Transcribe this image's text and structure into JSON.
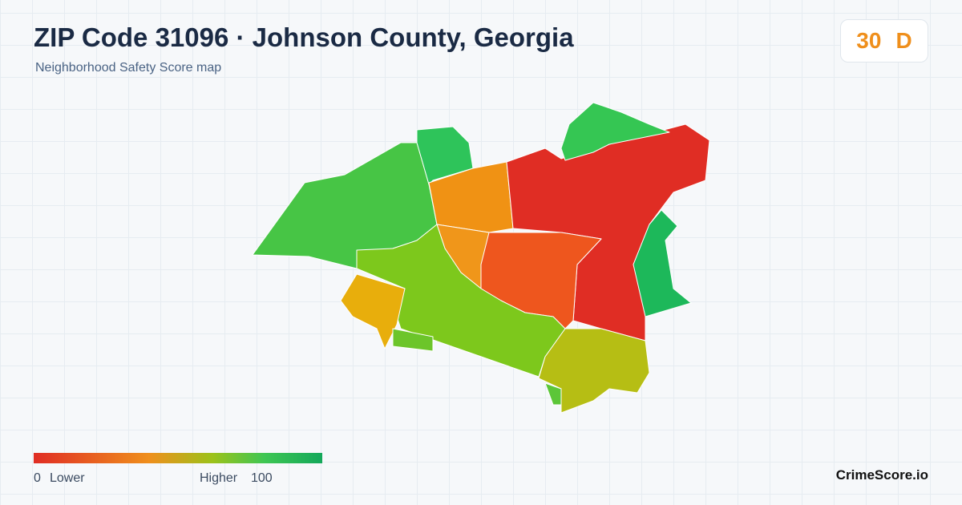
{
  "header": {
    "title": "ZIP Code 31096 · Johnson County, Georgia",
    "subtitle": "Neighborhood Safety Score map"
  },
  "badge": {
    "score": "30",
    "grade": "D"
  },
  "legend": {
    "min": "0",
    "min_label": "Lower",
    "max_label": "Higher",
    "max": "100"
  },
  "footer": {
    "brand": "CrimeScore.io"
  }
}
